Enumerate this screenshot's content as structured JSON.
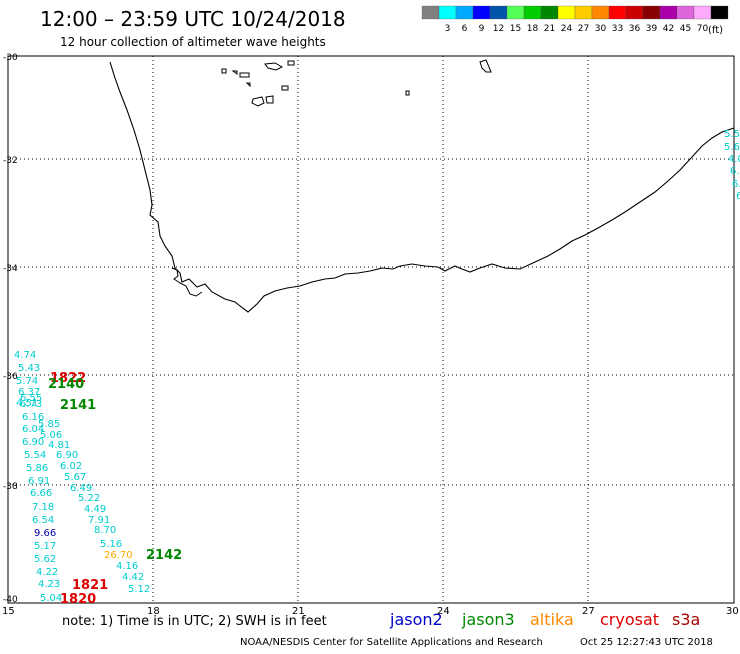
{
  "header": {
    "title": "12:00 – 23:59 UTC 10/24/2018",
    "subtitle": "12 hour collection of altimeter wave heights"
  },
  "legend": {
    "unit_label": "(ft)",
    "swatches": [
      {
        "color": "#808080",
        "label": ""
      },
      {
        "color": "#00ffff",
        "label": "3"
      },
      {
        "color": "#00aaff",
        "label": "6"
      },
      {
        "color": "#0000ff",
        "label": "9"
      },
      {
        "color": "#0055aa",
        "label": "12"
      },
      {
        "color": "#55ff55",
        "label": "15"
      },
      {
        "color": "#00cc00",
        "label": "18"
      },
      {
        "color": "#008800",
        "label": "21"
      },
      {
        "color": "#ffff00",
        "label": "24"
      },
      {
        "color": "#ffcc00",
        "label": "27"
      },
      {
        "color": "#ff8800",
        "label": "30"
      },
      {
        "color": "#ff0000",
        "label": "33"
      },
      {
        "color": "#cc0000",
        "label": "36"
      },
      {
        "color": "#880000",
        "label": "39"
      },
      {
        "color": "#aa00aa",
        "label": "42"
      },
      {
        "color": "#dd66dd",
        "label": "45"
      },
      {
        "color": "#ffaaff",
        "label": "70"
      },
      {
        "color": "#000000",
        "label": ""
      }
    ]
  },
  "map": {
    "lon_ticks": [
      "15",
      "18",
      "21",
      "24",
      "27",
      "30"
    ],
    "lat_ticks": [
      "-30",
      "-32",
      "-34",
      "-36",
      "-38",
      "-40"
    ],
    "colors": {
      "cyan": "#00cccc",
      "green": "#008800",
      "red": "#dd0000",
      "orange": "#ffaa00",
      "blue": "#0000aa"
    },
    "swh_values": [
      {
        "text": "4.74",
        "color": "cyan"
      },
      {
        "text": "5.43",
        "color": "cyan"
      },
      {
        "text": "5.74",
        "color": "cyan"
      },
      {
        "text": "6.37",
        "color": "cyan"
      },
      {
        "text": "6.55",
        "color": "cyan"
      },
      {
        "text": "6.73",
        "color": "cyan"
      },
      {
        "text": "4.51",
        "color": "cyan"
      },
      {
        "text": "5.85",
        "color": "cyan"
      },
      {
        "text": "6.16",
        "color": "cyan"
      },
      {
        "text": "6.04",
        "color": "cyan"
      },
      {
        "text": "5.06",
        "color": "cyan"
      },
      {
        "text": "6.90",
        "color": "cyan"
      },
      {
        "text": "4.81",
        "color": "cyan"
      },
      {
        "text": "5.54",
        "color": "cyan"
      },
      {
        "text": "6.90",
        "color": "cyan"
      },
      {
        "text": "5.86",
        "color": "cyan"
      },
      {
        "text": "6.02",
        "color": "cyan"
      },
      {
        "text": "6.91",
        "color": "cyan"
      },
      {
        "text": "5.67",
        "color": "cyan"
      },
      {
        "text": "6.49",
        "color": "cyan"
      },
      {
        "text": "6.66",
        "color": "cyan"
      },
      {
        "text": "5.22",
        "color": "cyan"
      },
      {
        "text": "7.18",
        "color": "cyan"
      },
      {
        "text": "4.49",
        "color": "cyan"
      },
      {
        "text": "6.54",
        "color": "cyan"
      },
      {
        "text": "7.91",
        "color": "cyan"
      },
      {
        "text": "8.70",
        "color": "cyan"
      },
      {
        "text": "9.66",
        "color": "blue"
      },
      {
        "text": "5.17",
        "color": "cyan"
      },
      {
        "text": "5.16",
        "color": "cyan"
      },
      {
        "text": "26.70",
        "color": "orange"
      },
      {
        "text": "5.62",
        "color": "cyan"
      },
      {
        "text": "4.16",
        "color": "cyan"
      },
      {
        "text": "4.22",
        "color": "cyan"
      },
      {
        "text": "4.42",
        "color": "cyan"
      },
      {
        "text": "4.23",
        "color": "cyan"
      },
      {
        "text": "5.12",
        "color": "cyan"
      },
      {
        "text": "5.04",
        "color": "cyan"
      },
      {
        "text": "5.56",
        "color": "cyan"
      },
      {
        "text": "5.6",
        "color": "cyan"
      },
      {
        "text": "4.0",
        "color": "cyan"
      },
      {
        "text": "6.",
        "color": "cyan"
      },
      {
        "text": "6.",
        "color": "cyan"
      },
      {
        "text": "6",
        "color": "cyan"
      }
    ],
    "time_labels": [
      {
        "text": "1822",
        "color": "red"
      },
      {
        "text": "2140",
        "color": "green"
      },
      {
        "text": "2141",
        "color": "green"
      },
      {
        "text": "2142",
        "color": "green"
      },
      {
        "text": "1821",
        "color": "red"
      },
      {
        "text": "1820",
        "color": "red"
      }
    ]
  },
  "footer": {
    "note": "note: 1) Time is in UTC; 2) SWH is in feet",
    "satellites": [
      {
        "name": "jason2",
        "color": "#0000cc"
      },
      {
        "name": "jason3",
        "color": "#008800"
      },
      {
        "name": "altika",
        "color": "#ff8800"
      },
      {
        "name": "cryosat",
        "color": "#dd0000"
      },
      {
        "name": "s3a",
        "color": "#aa0000"
      }
    ],
    "credit": "NOAA/NESDIS Center for Satellite Applications and Research",
    "timestamp": "Oct 25 12:27:43 UTC 2018"
  }
}
